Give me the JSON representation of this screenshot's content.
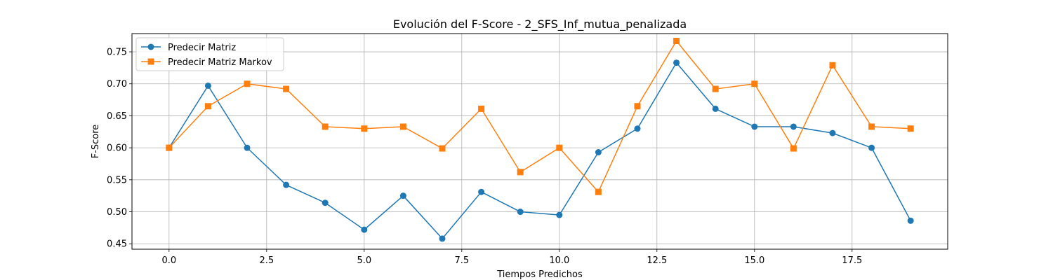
{
  "chart_data": {
    "type": "line",
    "title": "Evolución del F-Score - 2_SFS_Inf_mutua_penalizada",
    "xlabel": "Tiempos Predichos",
    "ylabel": "F-Score",
    "x": [
      0,
      1,
      2,
      3,
      4,
      5,
      6,
      7,
      8,
      9,
      10,
      11,
      12,
      13,
      14,
      15,
      16,
      17,
      18,
      19
    ],
    "xlim": [
      -0.95,
      19.95
    ],
    "ylim": [
      0.4415,
      0.7785
    ],
    "xticks": [
      0.0,
      2.5,
      5.0,
      7.5,
      10.0,
      12.5,
      15.0,
      17.5
    ],
    "xtick_labels": [
      "0.0",
      "2.5",
      "5.0",
      "7.5",
      "10.0",
      "12.5",
      "15.0",
      "17.5"
    ],
    "yticks": [
      0.45,
      0.5,
      0.55,
      0.6,
      0.65,
      0.7,
      0.75
    ],
    "ytick_labels": [
      "0.45",
      "0.50",
      "0.55",
      "0.60",
      "0.65",
      "0.70",
      "0.75"
    ],
    "grid": true,
    "legend_position": "top-left",
    "series": [
      {
        "name": "Predecir Matriz",
        "color": "#1f77b4",
        "marker": "circle",
        "values": [
          0.6,
          0.697,
          0.6,
          0.542,
          0.514,
          0.472,
          0.525,
          0.458,
          0.531,
          0.5,
          0.495,
          0.593,
          0.63,
          0.733,
          0.661,
          0.633,
          0.633,
          0.623,
          0.6,
          0.486
        ]
      },
      {
        "name": "Predecir Matriz Markov",
        "color": "#ff7f0e",
        "marker": "square",
        "values": [
          0.6,
          0.665,
          0.7,
          0.692,
          0.633,
          0.63,
          0.633,
          0.599,
          0.661,
          0.562,
          0.6,
          0.531,
          0.665,
          0.767,
          0.692,
          0.7,
          0.599,
          0.729,
          0.633,
          0.63
        ]
      }
    ]
  }
}
